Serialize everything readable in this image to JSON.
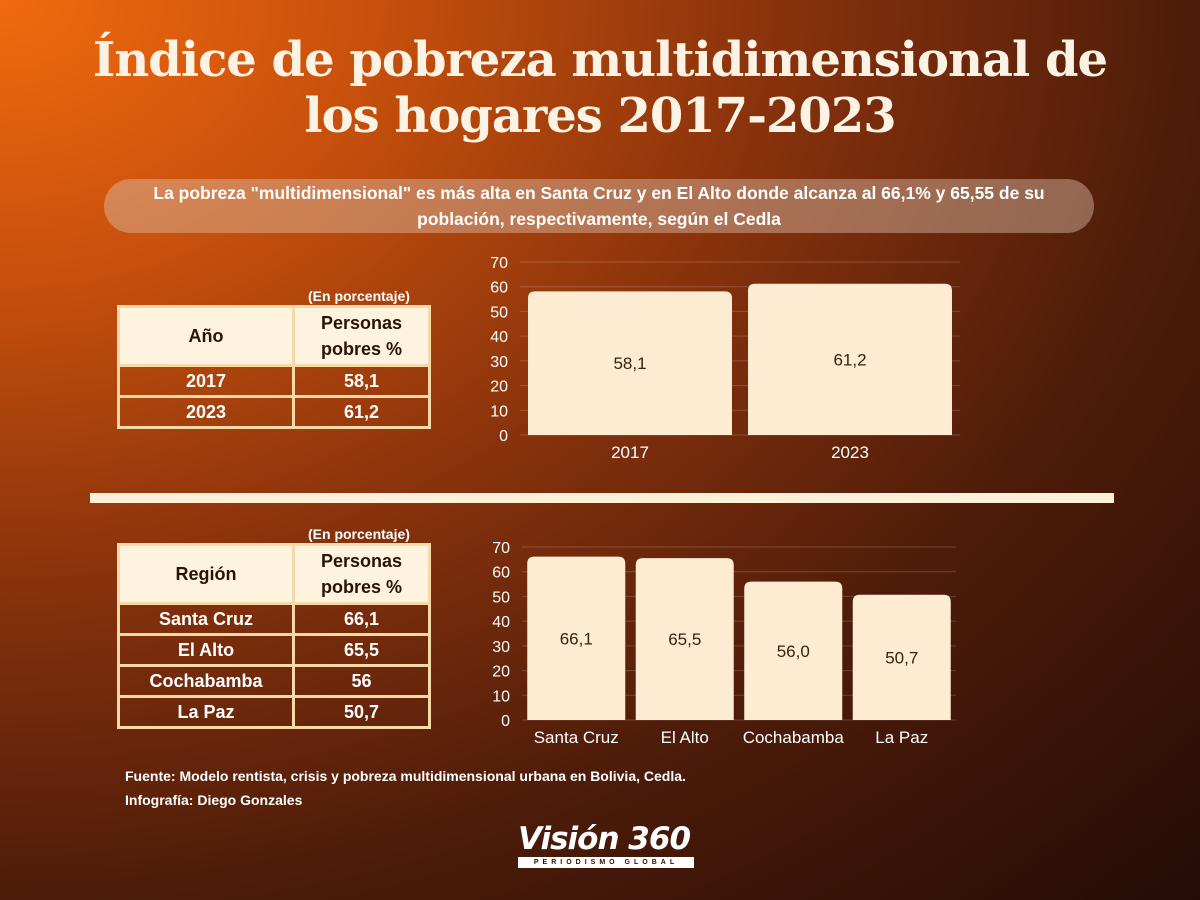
{
  "title": "Índice de pobreza multidimensional de los hogares 2017-2023",
  "subtitle": "La pobreza \"multidimensional\" es más alta en Santa Cruz y en El Alto donde alcanza al 66,1% y 65,55 de su población, respectivamente, según el Cedla",
  "table_year": {
    "unit_note": "(En porcentaje)",
    "col1": "Año",
    "col2": "Personas pobres %",
    "rows": [
      {
        "label": "2017",
        "value": "58,1"
      },
      {
        "label": "2023",
        "value": "61,2"
      }
    ]
  },
  "table_region": {
    "unit_note": "(En porcentaje)",
    "col1": "Región",
    "col2": "Personas pobres %",
    "rows": [
      {
        "label": "Santa Cruz",
        "value": "66,1"
      },
      {
        "label": "El Alto",
        "value": "65,5"
      },
      {
        "label": "Cochabamba",
        "value": "56"
      },
      {
        "label": "La Paz",
        "value": "50,7"
      }
    ]
  },
  "source": "Fuente: Modelo rentista, crisis y pobreza multidimensional urbana en Bolivia, Cedla.",
  "credit": "Infografía: Diego Gonzales",
  "logo": {
    "main": "Visión 360",
    "tagline": "PERIODISMO GLOBAL"
  },
  "colors": {
    "bar": "#fdecd2",
    "table_header": "#fdf3de",
    "table_border": "#f6d9a8"
  },
  "chart_data": [
    {
      "type": "bar",
      "categories": [
        "2017",
        "2023"
      ],
      "values": [
        58.1,
        61.2
      ],
      "value_labels": [
        "58,1",
        "61,2"
      ],
      "ylim": [
        0,
        70
      ],
      "yticks": [
        0,
        10,
        20,
        30,
        40,
        50,
        60,
        70
      ],
      "grid": true
    },
    {
      "type": "bar",
      "categories": [
        "Santa Cruz",
        "El Alto",
        "Cochabamba",
        "La Paz"
      ],
      "values": [
        66.1,
        65.5,
        56.0,
        50.7
      ],
      "value_labels": [
        "66,1",
        "65,5",
        "56,0",
        "50,7"
      ],
      "ylim": [
        0,
        70
      ],
      "yticks": [
        0,
        10,
        20,
        30,
        40,
        50,
        60,
        70
      ],
      "grid": true
    }
  ]
}
